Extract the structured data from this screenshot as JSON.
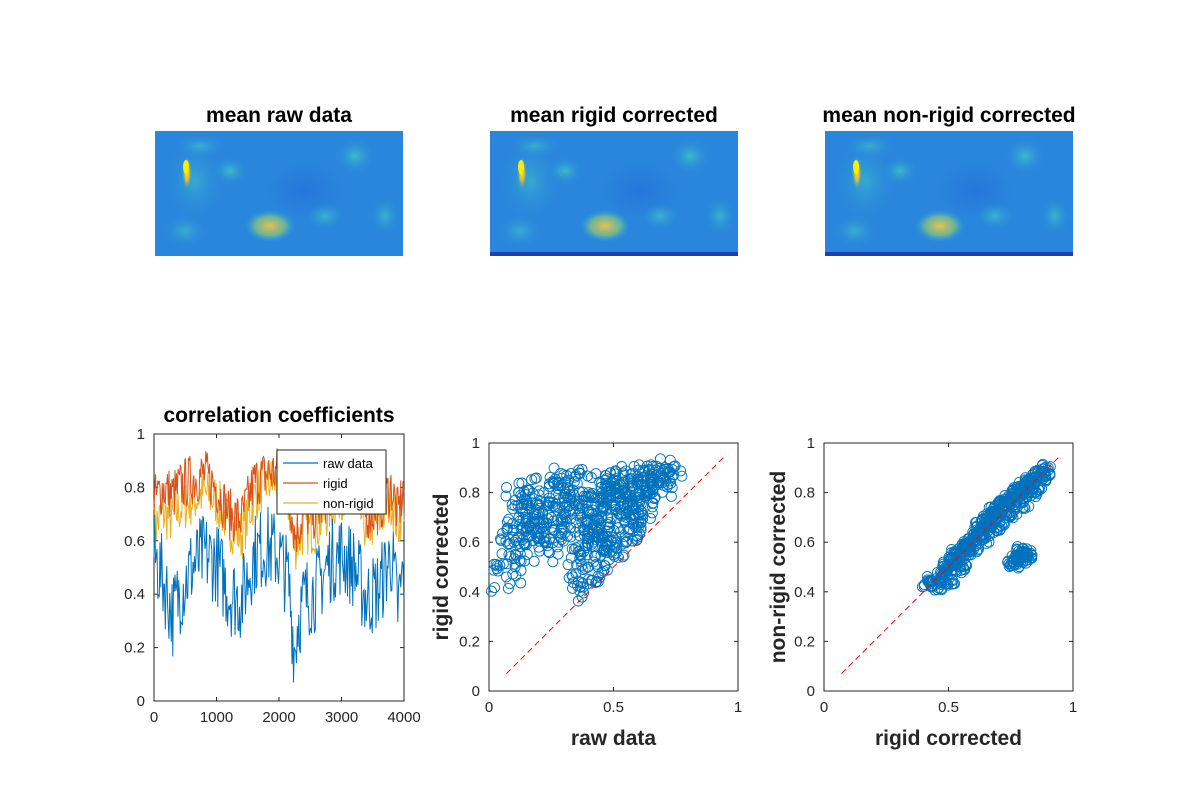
{
  "figure": {
    "images": [
      {
        "title": "mean raw data"
      },
      {
        "title": "mean rigid corrected"
      },
      {
        "title": "mean non-rigid corrected"
      }
    ]
  },
  "chart_data": [
    {
      "type": "line",
      "title": "correlation coefficients",
      "xlabel": "",
      "ylabel": "",
      "xlim": [
        0,
        4000
      ],
      "ylim": [
        0,
        1
      ],
      "x_ticks": [
        "0",
        "1000",
        "2000",
        "3000",
        "4000"
      ],
      "y_ticks": [
        "0",
        "0.2",
        "0.4",
        "0.6",
        "0.8",
        "1"
      ],
      "legend": {
        "position": "top-right",
        "entries": [
          "raw data",
          "rigid",
          "non-rigid"
        ]
      },
      "colors": [
        "#0072bd",
        "#d95319",
        "#edb120"
      ],
      "series": [
        {
          "name": "raw data",
          "x": [
            0,
            150,
            300,
            400,
            600,
            800,
            1000,
            1200,
            1400,
            1600,
            1800,
            2000,
            2150,
            2250,
            2300,
            2400,
            2600,
            2800,
            3000,
            3200,
            3400,
            3600,
            3800,
            3900,
            4000
          ],
          "y": [
            0.55,
            0.45,
            0.32,
            0.4,
            0.5,
            0.55,
            0.52,
            0.4,
            0.38,
            0.55,
            0.58,
            0.55,
            0.45,
            0.18,
            0.3,
            0.38,
            0.42,
            0.52,
            0.55,
            0.5,
            0.38,
            0.42,
            0.55,
            0.35,
            0.5
          ]
        },
        {
          "name": "rigid",
          "x": [
            0,
            150,
            300,
            400,
            600,
            800,
            1000,
            1200,
            1400,
            1600,
            1800,
            2000,
            2150,
            2250,
            2300,
            2400,
            2600,
            2800,
            3000,
            3200,
            3400,
            3600,
            3800,
            3900,
            4000
          ],
          "y": [
            0.75,
            0.8,
            0.77,
            0.8,
            0.83,
            0.85,
            0.8,
            0.7,
            0.68,
            0.82,
            0.85,
            0.86,
            0.8,
            0.62,
            0.65,
            0.7,
            0.7,
            0.78,
            0.82,
            0.8,
            0.7,
            0.72,
            0.8,
            0.7,
            0.8
          ]
        },
        {
          "name": "non-rigid",
          "x": [
            0,
            150,
            300,
            400,
            600,
            800,
            1000,
            1200,
            1400,
            1600,
            1800,
            2000,
            2150,
            2250,
            2300,
            2400,
            2600,
            2800,
            3000,
            3200,
            3400,
            3600,
            3800,
            3900,
            4000
          ],
          "y": [
            0.65,
            0.7,
            0.68,
            0.72,
            0.75,
            0.78,
            0.75,
            0.66,
            0.62,
            0.76,
            0.82,
            0.82,
            0.74,
            0.58,
            0.6,
            0.64,
            0.65,
            0.72,
            0.78,
            0.75,
            0.65,
            0.68,
            0.76,
            0.65,
            0.75
          ]
        }
      ]
    },
    {
      "type": "scatter",
      "title": "",
      "xlabel": "raw data",
      "ylabel": "rigid corrected",
      "xlim": [
        0,
        1
      ],
      "ylim": [
        0,
        1
      ],
      "x_ticks": [
        "0",
        "0.5",
        "1"
      ],
      "y_ticks": [
        "0",
        "0.2",
        "0.4",
        "0.6",
        "0.8",
        "1"
      ],
      "reference_line": {
        "x": [
          0.07,
          0.95
        ],
        "y": [
          0.07,
          0.95
        ],
        "color": "#ff0000",
        "style": "dashed"
      },
      "series": [
        {
          "x": [
            0.07,
            0.08,
            0.1,
            0.12,
            0.15,
            0.18,
            0.2,
            0.22,
            0.25,
            0.28,
            0.3,
            0.32,
            0.35,
            0.37,
            0.38,
            0.4,
            0.42,
            0.45,
            0.48,
            0.5,
            0.52,
            0.55,
            0.58,
            0.6,
            0.62,
            0.65,
            0.68,
            0.7,
            0.72,
            0.35,
            0.4,
            0.45,
            0.5,
            0.55,
            0.6,
            0.3,
            0.25,
            0.2,
            0.15,
            0.12,
            0.45,
            0.5,
            0.55,
            0.6,
            0.65,
            0.4,
            0.42,
            0.38,
            0.48,
            0.58
          ],
          "y": [
            0.46,
            0.55,
            0.6,
            0.8,
            0.75,
            0.65,
            0.72,
            0.8,
            0.7,
            0.6,
            0.82,
            0.85,
            0.75,
            0.55,
            0.42,
            0.45,
            0.6,
            0.7,
            0.78,
            0.85,
            0.83,
            0.8,
            0.75,
            0.78,
            0.86,
            0.85,
            0.84,
            0.86,
            0.88,
            0.68,
            0.72,
            0.62,
            0.55,
            0.6,
            0.66,
            0.78,
            0.66,
            0.58,
            0.62,
            0.7,
            0.82,
            0.75,
            0.7,
            0.72,
            0.8,
            0.8,
            0.52,
            0.65,
            0.66,
            0.84
          ]
        }
      ]
    },
    {
      "type": "scatter",
      "title": "",
      "xlabel": "rigid corrected",
      "ylabel": "non-rigid corrected",
      "xlim": [
        0,
        1
      ],
      "ylim": [
        0,
        1
      ],
      "x_ticks": [
        "0",
        "0.5",
        "1"
      ],
      "y_ticks": [
        "0",
        "0.2",
        "0.4",
        "0.6",
        "0.8",
        "1"
      ],
      "reference_line": {
        "x": [
          0.07,
          0.95
        ],
        "y": [
          0.07,
          0.95
        ],
        "color": "#ff0000",
        "style": "dashed"
      },
      "series": [
        {
          "x": [
            0.42,
            0.45,
            0.47,
            0.5,
            0.52,
            0.55,
            0.57,
            0.6,
            0.62,
            0.65,
            0.67,
            0.7,
            0.72,
            0.75,
            0.77,
            0.8,
            0.82,
            0.85,
            0.87,
            0.9,
            0.5,
            0.55,
            0.6,
            0.65,
            0.7,
            0.75,
            0.8,
            0.85,
            0.53,
            0.58,
            0.63,
            0.68,
            0.73,
            0.78,
            0.83,
            0.76,
            0.78,
            0.8,
            0.82,
            0.79
          ],
          "y": [
            0.44,
            0.43,
            0.46,
            0.5,
            0.52,
            0.56,
            0.58,
            0.62,
            0.64,
            0.68,
            0.7,
            0.73,
            0.75,
            0.78,
            0.8,
            0.82,
            0.83,
            0.86,
            0.87,
            0.89,
            0.45,
            0.5,
            0.57,
            0.62,
            0.66,
            0.72,
            0.76,
            0.8,
            0.55,
            0.6,
            0.66,
            0.72,
            0.76,
            0.8,
            0.84,
            0.52,
            0.53,
            0.54,
            0.55,
            0.56
          ]
        }
      ]
    }
  ]
}
